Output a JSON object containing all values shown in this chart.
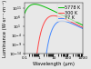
{
  "title": "",
  "xlabel": "Wavelength (μm)",
  "ylabel": "Luminance (W·sr⁻¹·m⁻³)",
  "temperatures": [
    5778,
    300,
    77
  ],
  "colors": [
    "#00bb00",
    "#ff4444",
    "#4488ff"
  ],
  "labels": [
    "5778 K",
    "300 K",
    "77 K"
  ],
  "xlim": [
    0.1,
    1000
  ],
  "ylim": [
    1e-14,
    100000000000000.0
  ],
  "background_color": "#e8e8e8",
  "legend_fontsize": 3.5,
  "axis_fontsize": 3.8,
  "tick_fontsize": 3.2,
  "linewidth": 0.7
}
